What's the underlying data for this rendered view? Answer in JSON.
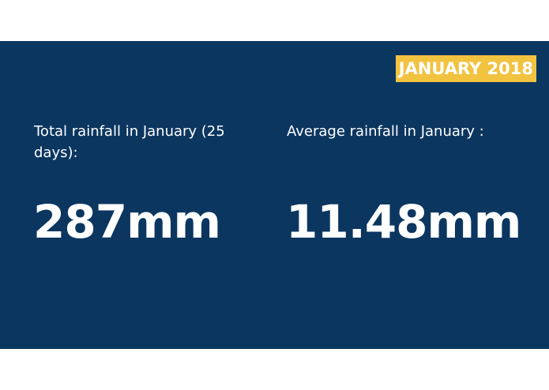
{
  "badge": {
    "text": "JANUARY 2018",
    "background": "#f2c340",
    "color": "#ffffff"
  },
  "panel": {
    "background": "#0b3660"
  },
  "total": {
    "label": "Total rainfall in January (25 days):",
    "value": "287mm"
  },
  "average": {
    "label": "Average rainfall in January :",
    "value": "11.48mm"
  }
}
